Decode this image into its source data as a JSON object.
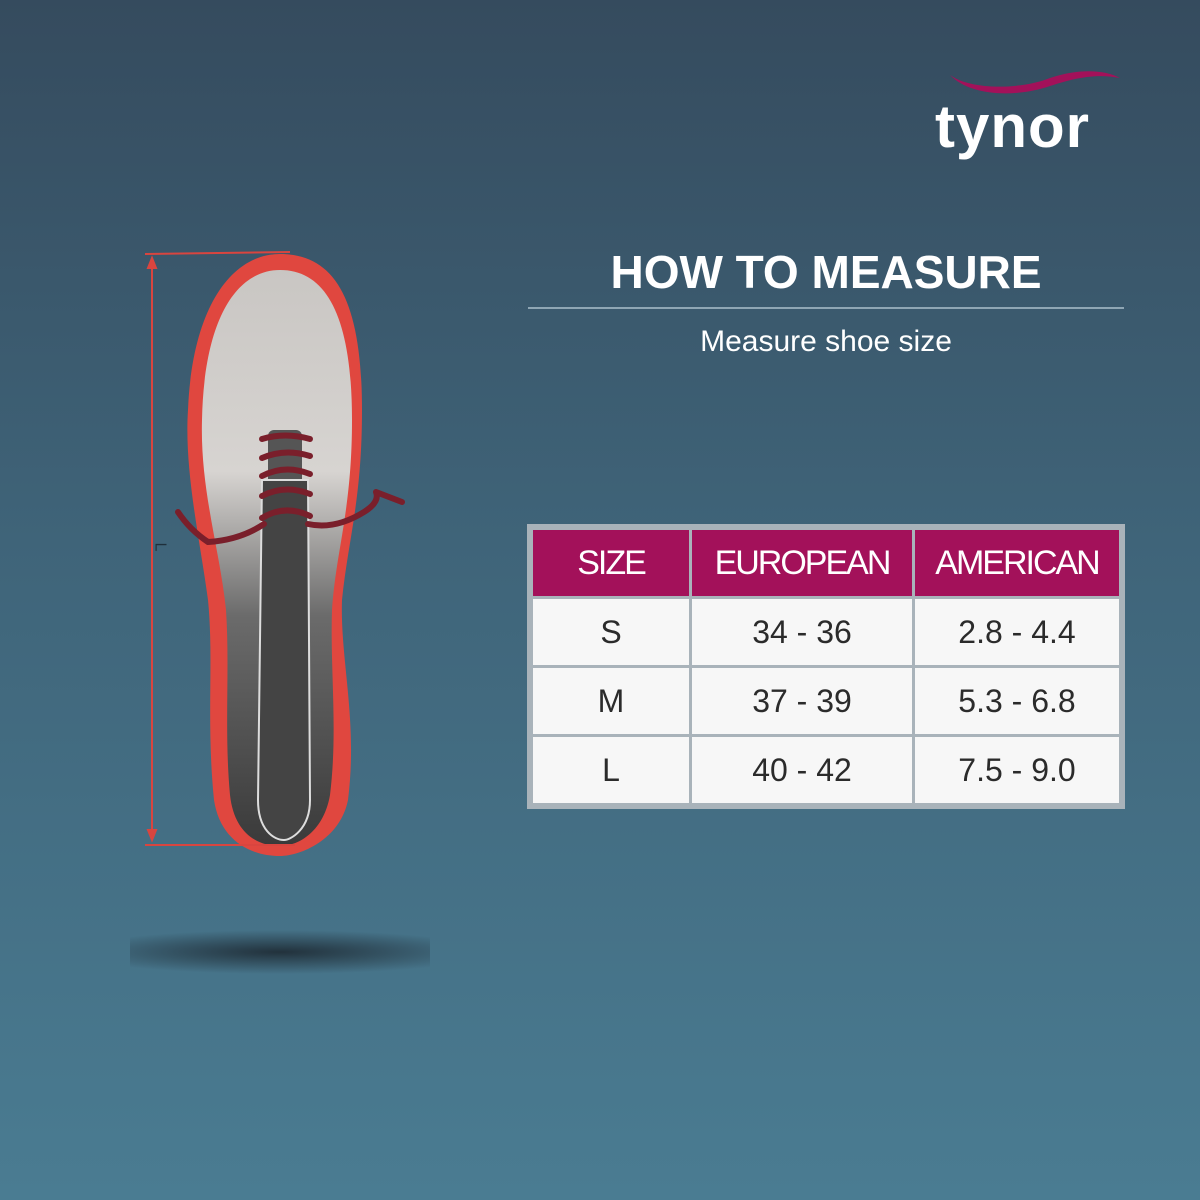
{
  "brand": {
    "name": "tynor",
    "accent": "#a3115a"
  },
  "header": {
    "title": "HOW TO MEASURE",
    "subtitle": "Measure shoe size"
  },
  "illustration": {
    "measure_label": "L",
    "icons": [
      "shoe-icon",
      "measure-arrow-icon"
    ]
  },
  "size_table": {
    "headers": [
      "SIZE",
      "EUROPEAN",
      "AMERICAN"
    ],
    "rows": [
      [
        "S",
        "34 - 36",
        "2.8 - 4.4"
      ],
      [
        "M",
        "37 - 39",
        "5.3 - 6.8"
      ],
      [
        "L",
        "40 - 42",
        "7.5 - 9.0"
      ]
    ]
  }
}
